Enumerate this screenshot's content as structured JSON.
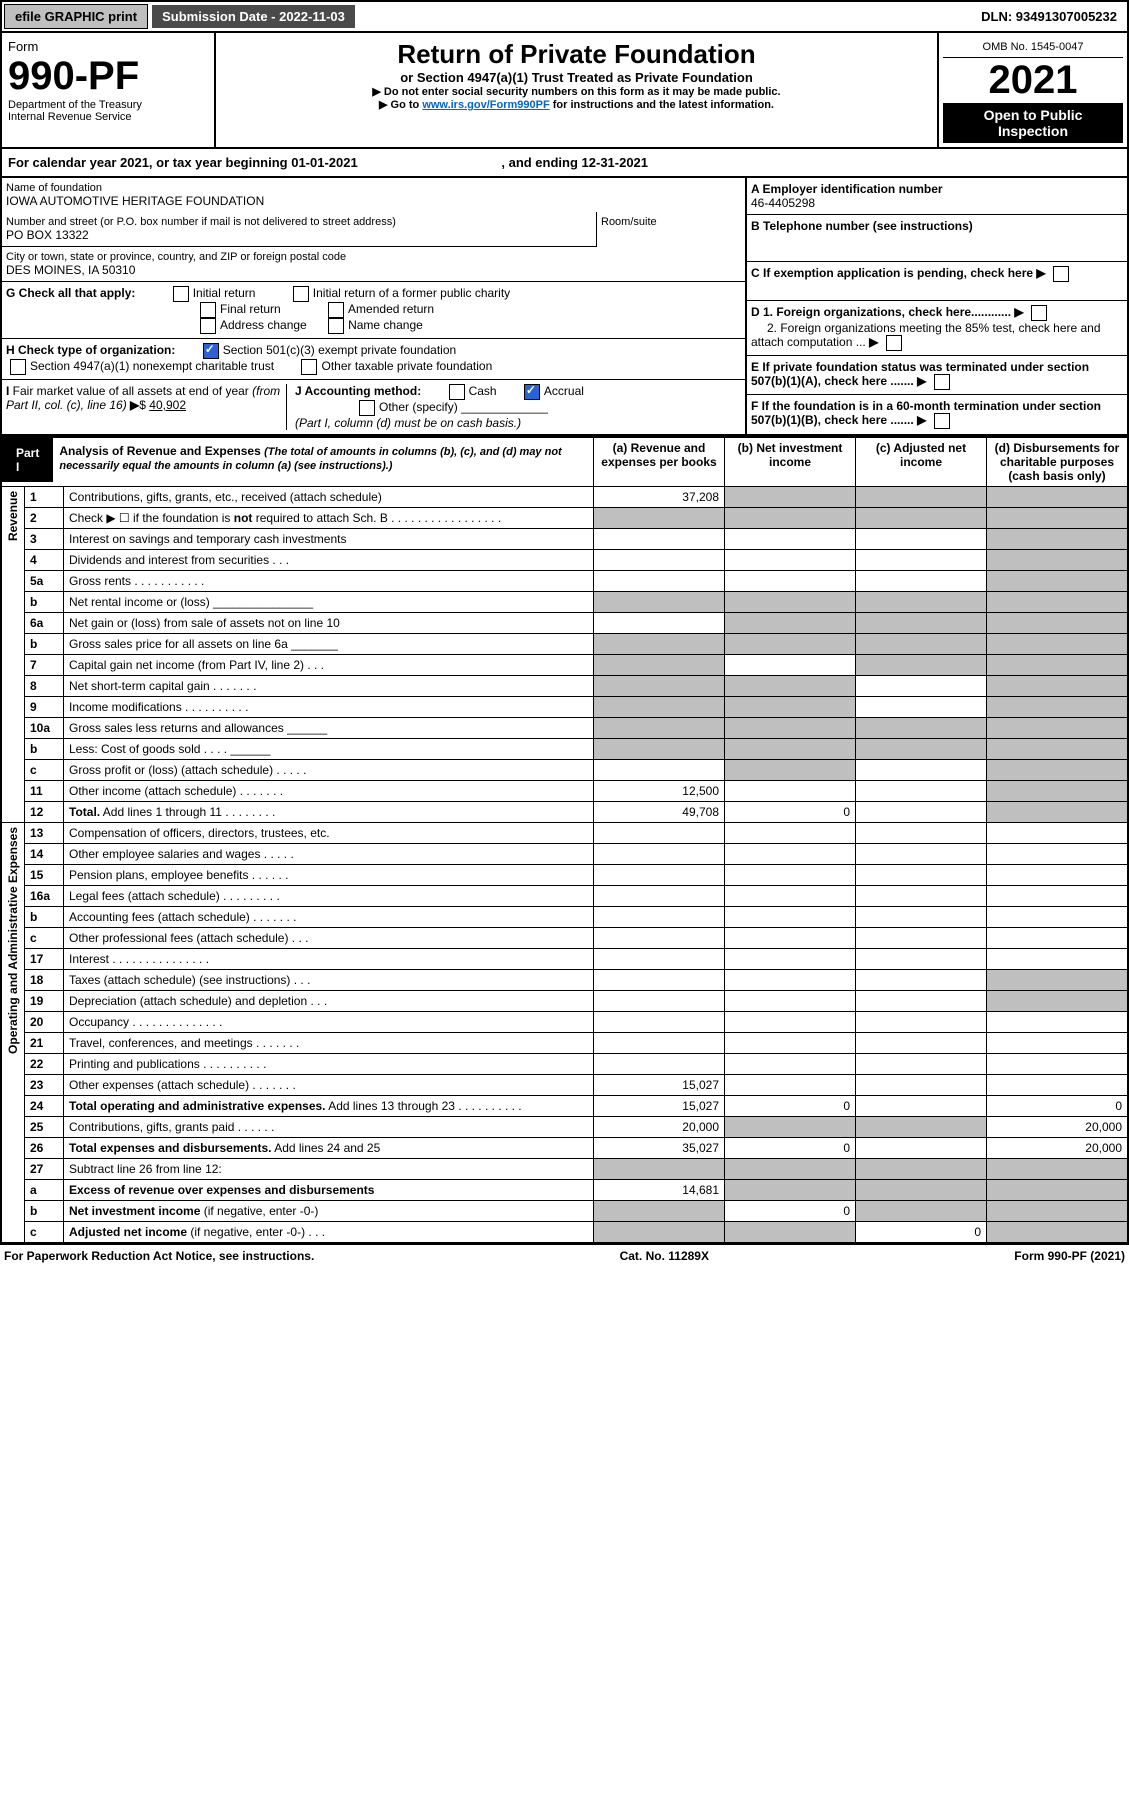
{
  "topbar": {
    "efile": "efile GRAPHIC print",
    "sub_lbl": "Submission Date - 2022-11-03",
    "dln": "DLN: 93491307005232"
  },
  "hdr": {
    "form": "Form",
    "form_no": "990-PF",
    "dept": "Department of the Treasury",
    "irs": "Internal Revenue Service",
    "title": "Return of Private Foundation",
    "sub": "or Section 4947(a)(1) Trust Treated as Private Foundation",
    "note1": "▶ Do not enter social security numbers on this form as it may be made public.",
    "note2_pre": "▶ Go to ",
    "note2_link": "www.irs.gov/Form990PF",
    "note2_post": " for instructions and the latest information.",
    "omb": "OMB No. 1545-0047",
    "year": "2021",
    "open": "Open to Public Inspection"
  },
  "cal": {
    "text": "For calendar year 2021, or tax year beginning 01-01-2021",
    "end": ", and ending 12-31-2021"
  },
  "found": {
    "name_lbl": "Name of foundation",
    "name": "IOWA AUTOMOTIVE HERITAGE FOUNDATION",
    "addr_lbl": "Number and street (or P.O. box number if mail is not delivered to street address)",
    "addr": "PO BOX 13322",
    "room_lbl": "Room/suite",
    "city_lbl": "City or town, state or province, country, and ZIP or foreign postal code",
    "city": "DES MOINES, IA  50310",
    "ein_lbl": "A Employer identification number",
    "ein": "46-4405298",
    "tel_lbl": "B Telephone number (see instructions)",
    "c_lbl": "C If exemption application is pending, check here",
    "d1": "D 1. Foreign organizations, check here............",
    "d2": "2. Foreign organizations meeting the 85% test, check here and attach computation ...",
    "e": "E  If private foundation status was terminated under section 507(b)(1)(A), check here .......",
    "f": "F  If the foundation is in a 60-month termination under section 507(b)(1)(B), check here ......."
  },
  "g": {
    "lbl": "G Check all that apply:",
    "initial": "Initial return",
    "initial_pub": "Initial return of a former public charity",
    "final": "Final return",
    "amended": "Amended return",
    "addr_chg": "Address change",
    "name_chg": "Name change"
  },
  "h": {
    "lbl": "H Check type of organization:",
    "c3": "Section 501(c)(3) exempt private foundation",
    "trust": "Section 4947(a)(1) nonexempt charitable trust",
    "other": "Other taxable private foundation"
  },
  "i": {
    "lbl": "I Fair market value of all assets at end of year (from Part II, col. (c), line 16) ▶$",
    "val": "40,902"
  },
  "j": {
    "lbl": "J Accounting method:",
    "cash": "Cash",
    "accrual": "Accrual",
    "other": "Other (specify)",
    "note": "(Part I, column (d) must be on cash basis.)"
  },
  "part1": {
    "lbl": "Part I",
    "title": "Analysis of Revenue and Expenses",
    "paren": "(The total of amounts in columns (b), (c), and (d) may not necessarily equal the amounts in column (a) (see instructions).)",
    "ca": "(a)  Revenue and expenses per books",
    "cb": "(b)  Net investment income",
    "cc": "(c)  Adjusted net income",
    "cd": "(d)  Disbursements for charitable purposes (cash basis only)"
  },
  "rev_lbl": "Revenue",
  "oae_lbl": "Operating and Administrative Expenses",
  "rows": [
    {
      "n": "1",
      "d": "Contributions, gifts, grants, etc., received (attach schedule)",
      "a": "37,208",
      "gb": true,
      "gc": true,
      "gd": true
    },
    {
      "n": "2",
      "d": "Check ▶ ☐ if the foundation is <b>not</b> required to attach Sch. B   .  .  .  .  .  .  .  .  .  .  .  .  .  .  .  .  .",
      "ga": true,
      "gb": true,
      "gc": true,
      "gd": true
    },
    {
      "n": "3",
      "d": "Interest on savings and temporary cash investments",
      "gd": true
    },
    {
      "n": "4",
      "d": "Dividends and interest from securities    .   .   .",
      "gd": true
    },
    {
      "n": "5a",
      "d": "Gross rents      .   .   .   .   .   .   .   .   .   .   .",
      "gd": true
    },
    {
      "n": "b",
      "d": "Net rental income or (loss)  _______________",
      "ga": true,
      "gb": true,
      "gc": true,
      "gd": true
    },
    {
      "n": "6a",
      "d": "Net gain or (loss) from sale of assets not on line 10",
      "gb": true,
      "gc": true,
      "gd": true
    },
    {
      "n": "b",
      "d": "Gross sales price for all assets on line 6a _______",
      "ga": true,
      "gb": true,
      "gc": true,
      "gd": true
    },
    {
      "n": "7",
      "d": "Capital gain net income (from Part IV, line 2)  .  .  .",
      "ga": true,
      "gc": true,
      "gd": true
    },
    {
      "n": "8",
      "d": "Net short-term capital gain  .   .   .   .   .   .   .",
      "ga": true,
      "gb": true,
      "gd": true
    },
    {
      "n": "9",
      "d": "Income modifications .   .   .   .   .   .   .   .   .  .",
      "ga": true,
      "gb": true,
      "gd": true
    },
    {
      "n": "10a",
      "d": "Gross sales less returns and allowances  ______",
      "ga": true,
      "gb": true,
      "gc": true,
      "gd": true
    },
    {
      "n": "b",
      "d": "Less: Cost of goods sold    .   .   .   .   ______",
      "ga": true,
      "gb": true,
      "gc": true,
      "gd": true
    },
    {
      "n": "c",
      "d": "Gross profit or (loss) (attach schedule)    .   .   .   .   .",
      "gb": true,
      "gd": true
    },
    {
      "n": "11",
      "d": "Other income (attach schedule)   .   .   .   .   .   .  .",
      "a": "12,500",
      "gd": true
    },
    {
      "n": "12",
      "d": "<b>Total.</b> Add lines 1 through 11   .   .   .   .   .   .   .  .",
      "a": "49,708",
      "b": "0",
      "gd": true
    }
  ],
  "erows": [
    {
      "n": "13",
      "d": "Compensation of officers, directors, trustees, etc."
    },
    {
      "n": "14",
      "d": "Other employee salaries and wages    .   .   .   .   ."
    },
    {
      "n": "15",
      "d": "Pension plans, employee benefits  .   .   .   .   .   ."
    },
    {
      "n": "16a",
      "d": "Legal fees (attach schedule) .   .   .   .   .   .   .   .  ."
    },
    {
      "n": "b",
      "d": "Accounting fees (attach schedule) .   .   .   .   .   .  ."
    },
    {
      "n": "c",
      "d": "Other professional fees (attach schedule)    .   .   ."
    },
    {
      "n": "17",
      "d": "Interest  .   .   .   .   .   .   .   .   .   .   .   .   .   .   ."
    },
    {
      "n": "18",
      "d": "Taxes (attach schedule) (see instructions)     .   .   .",
      "gd": true
    },
    {
      "n": "19",
      "d": "Depreciation (attach schedule) and depletion    .   .   .",
      "gd": true
    },
    {
      "n": "20",
      "d": "Occupancy .   .   .   .   .   .   .   .   .   .   .   .   .   ."
    },
    {
      "n": "21",
      "d": "Travel, conferences, and meetings .   .   .   .   .   .  ."
    },
    {
      "n": "22",
      "d": "Printing and publications .   .   .   .   .   .   .   .   .  ."
    },
    {
      "n": "23",
      "d": "Other expenses (attach schedule) .   .   .   .   .   .   .",
      "a": "15,027"
    },
    {
      "n": "24",
      "d": "<b>Total operating and administrative expenses.</b> Add lines 13 through 23   .   .   .   .   .   .   .   .   .  .",
      "a": "15,027",
      "b": "0",
      "d4": "0"
    },
    {
      "n": "25",
      "d": "Contributions, gifts, grants paid     .   .   .   .   .   .",
      "a": "20,000",
      "gb": true,
      "gc": true,
      "d4": "20,000"
    },
    {
      "n": "26",
      "d": "<b>Total expenses and disbursements.</b> Add lines 24 and 25",
      "a": "35,027",
      "b": "0",
      "d4": "20,000"
    },
    {
      "n": "27",
      "d": "Subtract line 26 from line 12:",
      "ga": true,
      "gb": true,
      "gc": true,
      "gd": true
    },
    {
      "n": "a",
      "d": "<b>Excess of revenue over expenses and disbursements</b>",
      "a": "14,681",
      "gb": true,
      "gc": true,
      "gd": true
    },
    {
      "n": "b",
      "d": "<b>Net investment income</b> (if negative, enter -0-)",
      "ga": true,
      "b": "0",
      "gc": true,
      "gd": true
    },
    {
      "n": "c",
      "d": "<b>Adjusted net income</b> (if negative, enter -0-)   .   .   .",
      "ga": true,
      "gb": true,
      "c": "0",
      "gd": true
    }
  ],
  "footer": {
    "l": "For Paperwork Reduction Act Notice, see instructions.",
    "c": "Cat. No. 11289X",
    "r": "Form 990-PF (2021)"
  }
}
